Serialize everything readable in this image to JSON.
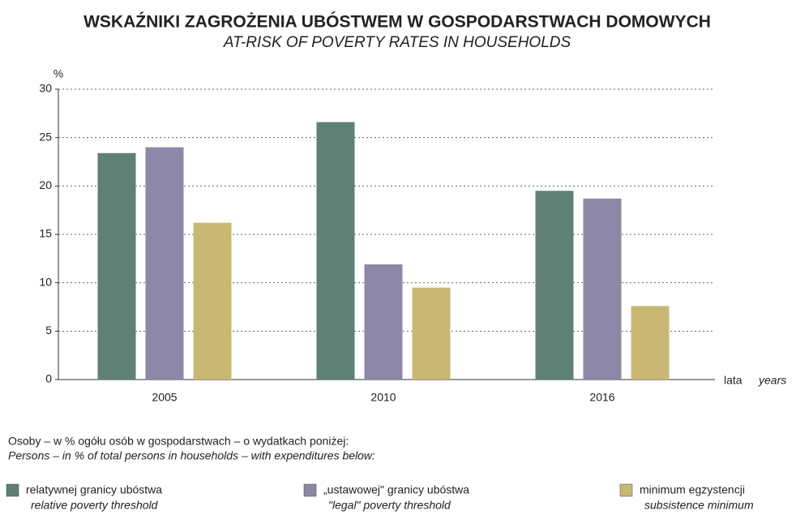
{
  "chart_data": {
    "type": "bar",
    "title": "WSKAŹNIKI ZAGROŻENIA UBÓSTWEM W GOSPODARSTWACH DOMOWYCH",
    "subtitle": "AT-RISK OF POVERTY RATES IN HOUSEHOLDS",
    "y_label": "%",
    "x_label": "lata",
    "x_label_en": "years",
    "note": "Osoby – w % ogółu osób w gospodarstwach – o wydatkach poniżej:",
    "note_en": "Persons – in % of total  persons in households – with expenditures below:",
    "categories": [
      "2005",
      "2010",
      "2016"
    ],
    "series": [
      {
        "name": "relatywnej granicy ubóstwa",
        "name_en": "relative poverty threshold",
        "color": "#5f8074",
        "values": [
          23.4,
          26.6,
          19.5
        ]
      },
      {
        "name": "„ustawowej\" granicy ubóstwa",
        "name_en": "\"legal\" poverty threshold",
        "color": "#8d87a8",
        "values": [
          24.0,
          11.9,
          18.7
        ]
      },
      {
        "name": "minimum egzystencji",
        "name_en": "subsistence minimum",
        "color": "#c8b874",
        "values": [
          16.2,
          9.5,
          7.6
        ]
      }
    ],
    "ylim": [
      0,
      30
    ],
    "yticks": [
      0,
      5,
      10,
      15,
      20,
      25,
      30
    ],
    "grid": true
  }
}
